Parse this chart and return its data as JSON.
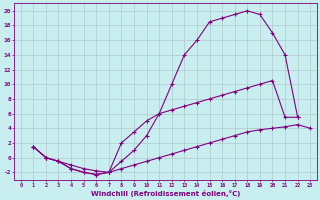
{
  "background_color": "#c8eef0",
  "grid_color": "#b0c8cc",
  "line_color": "#800080",
  "marker": "+",
  "markersize": 3,
  "linewidth": 0.8,
  "xlabel": "Windchill (Refroidissement éolien,°C)",
  "xlim": [
    -0.5,
    23.5
  ],
  "ylim": [
    -3,
    21
  ],
  "xticks": [
    0,
    1,
    2,
    3,
    4,
    5,
    6,
    7,
    8,
    9,
    10,
    11,
    12,
    13,
    14,
    15,
    16,
    17,
    18,
    19,
    20,
    21,
    22,
    23
  ],
  "yticks": [
    -2,
    0,
    2,
    4,
    6,
    8,
    10,
    12,
    14,
    16,
    18,
    20
  ],
  "curve1_x": [
    1,
    2,
    3,
    4,
    5,
    6,
    7,
    8,
    9,
    10,
    11,
    12,
    13,
    14,
    15,
    16,
    17,
    18,
    19,
    20,
    21,
    22
  ],
  "curve1_y": [
    1.5,
    0,
    -0.5,
    -1.5,
    -2,
    -2.3,
    -2,
    -0.5,
    1,
    3,
    6,
    10,
    14,
    16,
    18.5,
    19,
    19.5,
    20,
    19.5,
    17,
    14,
    5.5
  ],
  "curve2_x": [
    1,
    2,
    3,
    4,
    5,
    6,
    7,
    8,
    9,
    10,
    11,
    12,
    13,
    14,
    15,
    16,
    17,
    18,
    19,
    20,
    21,
    22
  ],
  "curve2_y": [
    1.5,
    0,
    -0.5,
    -1.5,
    -2,
    -2.3,
    -2,
    2,
    3.5,
    5,
    6,
    6.5,
    7,
    7.5,
    8,
    8.5,
    9,
    9.5,
    10,
    10.5,
    5.5,
    5.5
  ],
  "curve3_x": [
    1,
    2,
    3,
    4,
    5,
    6,
    7,
    8,
    9,
    10,
    11,
    12,
    13,
    14,
    15,
    16,
    17,
    18,
    19,
    20,
    21,
    22,
    23
  ],
  "curve3_y": [
    1.5,
    0,
    -0.5,
    -1,
    -1.5,
    -1.8,
    -2,
    -1.5,
    -1,
    -0.5,
    0,
    0.5,
    1,
    1.5,
    2,
    2.5,
    3,
    3.5,
    3.8,
    4,
    4.2,
    4.5,
    4
  ]
}
